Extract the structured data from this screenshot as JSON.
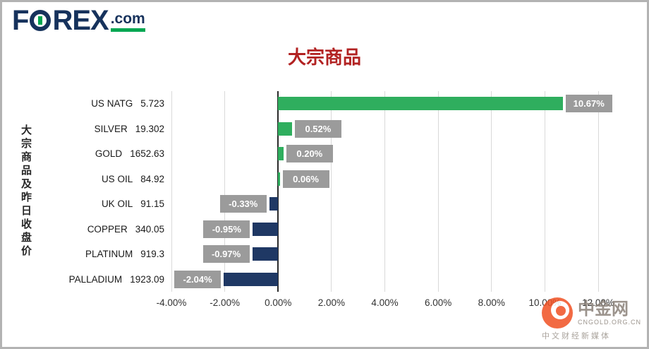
{
  "logo": {
    "f": "F",
    "rex": "REX",
    "dotcom": ".com"
  },
  "chart_data": {
    "type": "bar",
    "orientation": "horizontal",
    "title": "大宗商品",
    "ylabel": "大宗商品及昨日收盘价",
    "categories": [
      "US NATG",
      "SILVER",
      "GOLD",
      "US OIL",
      "UK OIL",
      "COPPER",
      "PLATINUM",
      "PALLADIUM"
    ],
    "close_prices": [
      "5.723",
      "19.302",
      "1652.63",
      "84.92",
      "91.15",
      "340.05",
      "919.3",
      "1923.09"
    ],
    "values": [
      10.67,
      0.52,
      0.2,
      0.06,
      -0.33,
      -0.95,
      -0.97,
      -2.04
    ],
    "value_labels": [
      "10.67%",
      "0.52%",
      "0.20%",
      "0.06%",
      "-0.33%",
      "-0.95%",
      "-0.97%",
      "-2.04%"
    ],
    "x_tick_values": [
      -4,
      -2,
      0,
      2,
      4,
      6,
      8,
      10,
      12
    ],
    "x_tick_labels": [
      "-4.00%",
      "-2.00%",
      "0.00%",
      "2.00%",
      "4.00%",
      "6.00%",
      "8.00%",
      "10.00%",
      "12.00%"
    ],
    "xlim": [
      -4,
      12
    ],
    "grid": true,
    "legend": "none"
  },
  "colors": {
    "title": "#b22222",
    "positive_bar": "#2fae5e",
    "negative_bar": "#1f3864",
    "label_box": "#9b9b9b",
    "gridline": "#d9d9d9",
    "zero_line": "#2b2b2b",
    "logo_navy": "#16325c",
    "logo_green": "#00a651",
    "watermark_orange": "#f05123"
  },
  "watermark": {
    "name": "中金网",
    "site": "CNGOLD.ORG.CN",
    "tagline": "中文财经新媒体"
  }
}
